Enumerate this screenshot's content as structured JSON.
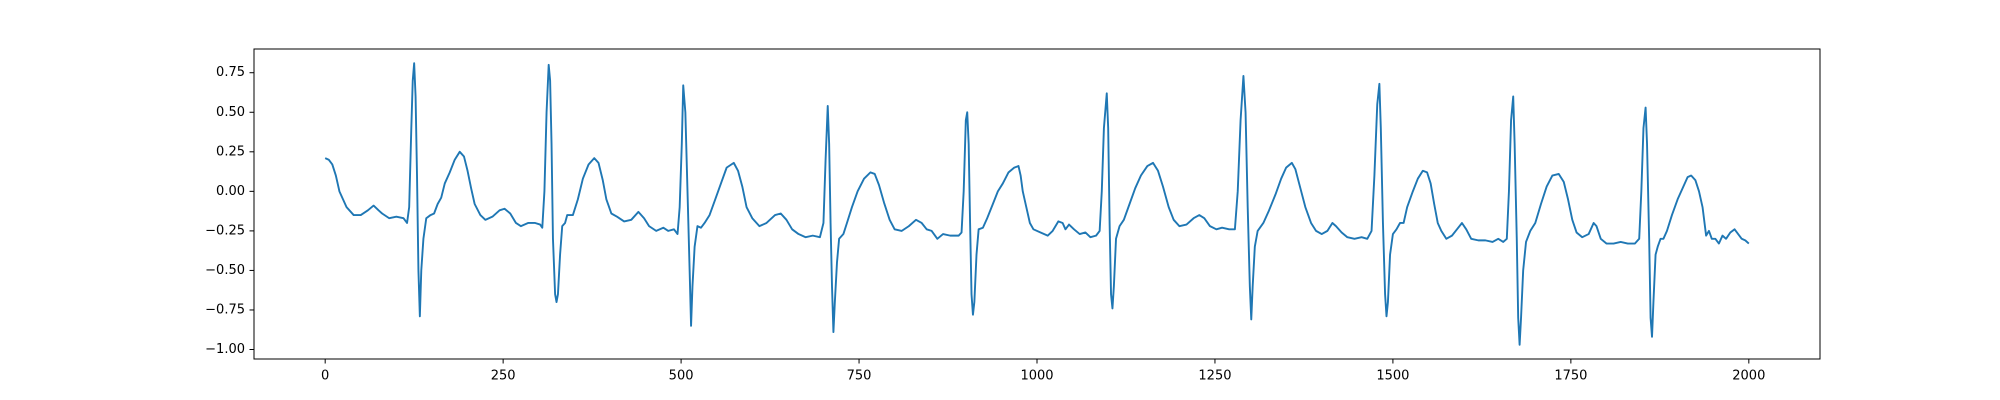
{
  "chart_data": {
    "type": "line",
    "x": [
      0,
      5,
      10,
      15,
      20,
      25,
      30,
      40,
      50,
      60,
      68,
      75,
      80,
      90,
      100,
      110,
      115,
      118,
      121,
      123,
      125,
      127,
      129,
      131,
      133,
      135,
      138,
      142,
      148,
      153,
      158,
      163,
      168,
      175,
      182,
      189,
      195,
      200,
      205,
      210,
      218,
      225,
      235,
      245,
      252,
      260,
      268,
      275,
      285,
      295,
      302,
      305,
      308,
      311,
      314,
      316,
      318,
      320,
      323,
      325,
      327,
      330,
      333,
      337,
      340,
      348,
      355,
      362,
      370,
      378,
      384,
      390,
      395,
      402,
      410,
      420,
      430,
      440,
      448,
      455,
      465,
      475,
      482,
      490,
      495,
      498,
      501,
      503,
      506,
      509,
      512,
      514,
      516,
      519,
      523,
      528,
      533,
      540,
      548,
      556,
      564,
      574,
      580,
      586,
      592,
      600,
      610,
      620,
      632,
      640,
      648,
      656,
      665,
      675,
      685,
      695,
      700,
      703,
      706,
      708,
      710,
      712,
      714,
      716,
      719,
      722,
      728,
      733,
      740,
      748,
      757,
      766,
      772,
      778,
      785,
      793,
      800,
      810,
      820,
      830,
      838,
      845,
      852,
      860,
      868,
      878,
      890,
      894,
      897,
      900,
      902,
      904,
      906,
      908,
      910,
      912,
      915,
      918,
      924,
      930,
      938,
      945,
      952,
      960,
      968,
      974,
      977,
      980,
      985,
      990,
      995,
      1005,
      1015,
      1022,
      1030,
      1036,
      1040,
      1045,
      1052,
      1060,
      1068,
      1075,
      1083,
      1088,
      1091,
      1094,
      1098,
      1100,
      1102,
      1104,
      1106,
      1108,
      1111,
      1116,
      1122,
      1130,
      1138,
      1146,
      1155,
      1163,
      1170,
      1177,
      1185,
      1192,
      1200,
      1210,
      1220,
      1228,
      1235,
      1243,
      1252,
      1260,
      1270,
      1278,
      1282,
      1286,
      1290,
      1293,
      1296,
      1299,
      1301,
      1303,
      1306,
      1310,
      1318,
      1326,
      1335,
      1343,
      1350,
      1358,
      1363,
      1370,
      1377,
      1385,
      1392,
      1400,
      1408,
      1415,
      1420,
      1428,
      1436,
      1446,
      1456,
      1464,
      1470,
      1474,
      1478,
      1481,
      1483,
      1486,
      1489,
      1491,
      1493,
      1496,
      1500,
      1505,
      1510,
      1515,
      1520,
      1528,
      1535,
      1542,
      1548,
      1553,
      1558,
      1563,
      1568,
      1575,
      1583,
      1590,
      1597,
      1603,
      1610,
      1620,
      1630,
      1640,
      1648,
      1655,
      1660,
      1663,
      1666,
      1669,
      1671,
      1674,
      1676,
      1678,
      1680,
      1683,
      1687,
      1693,
      1700,
      1708,
      1716,
      1724,
      1733,
      1740,
      1746,
      1752,
      1758,
      1766,
      1775,
      1782,
      1786,
      1792,
      1800,
      1810,
      1820,
      1830,
      1840,
      1846,
      1849,
      1852,
      1855,
      1857,
      1860,
      1862,
      1864,
      1866,
      1869,
      1872,
      1876,
      1880,
      1885,
      1892,
      1900,
      1908,
      1914,
      1919,
      1925,
      1930,
      1935,
      1940,
      1944,
      1948,
      1953,
      1958,
      1963,
      1968,
      1974,
      1980,
      1985,
      1990,
      1995,
      2000
    ],
    "series": [
      {
        "color": "#1f77b4",
        "values": [
          0.21,
          0.2,
          0.17,
          0.1,
          0.0,
          -0.05,
          -0.1,
          -0.15,
          -0.15,
          -0.12,
          -0.09,
          -0.12,
          -0.14,
          -0.17,
          -0.16,
          -0.17,
          -0.2,
          -0.1,
          0.4,
          0.7,
          0.81,
          0.6,
          0.1,
          -0.5,
          -0.79,
          -0.5,
          -0.3,
          -0.17,
          -0.15,
          -0.14,
          -0.08,
          -0.04,
          0.05,
          0.12,
          0.2,
          0.25,
          0.22,
          0.13,
          0.02,
          -0.08,
          -0.15,
          -0.18,
          -0.16,
          -0.12,
          -0.11,
          -0.14,
          -0.2,
          -0.22,
          -0.2,
          -0.2,
          -0.21,
          -0.23,
          0.0,
          0.5,
          0.8,
          0.7,
          0.3,
          -0.3,
          -0.65,
          -0.7,
          -0.65,
          -0.4,
          -0.22,
          -0.2,
          -0.15,
          -0.15,
          -0.05,
          0.08,
          0.17,
          0.21,
          0.18,
          0.07,
          -0.05,
          -0.14,
          -0.16,
          -0.19,
          -0.18,
          -0.13,
          -0.17,
          -0.22,
          -0.25,
          -0.23,
          -0.25,
          -0.24,
          -0.27,
          -0.1,
          0.3,
          0.67,
          0.5,
          0.0,
          -0.5,
          -0.85,
          -0.6,
          -0.35,
          -0.22,
          -0.23,
          -0.2,
          -0.15,
          -0.05,
          0.05,
          0.15,
          0.18,
          0.13,
          0.03,
          -0.1,
          -0.17,
          -0.22,
          -0.2,
          -0.15,
          -0.14,
          -0.18,
          -0.24,
          -0.27,
          -0.29,
          -0.28,
          -0.29,
          -0.2,
          0.2,
          0.54,
          0.3,
          -0.2,
          -0.6,
          -0.89,
          -0.7,
          -0.45,
          -0.3,
          -0.27,
          -0.2,
          -0.1,
          0.0,
          0.08,
          0.12,
          0.11,
          0.04,
          -0.07,
          -0.18,
          -0.24,
          -0.25,
          -0.22,
          -0.18,
          -0.2,
          -0.24,
          -0.25,
          -0.3,
          -0.27,
          -0.28,
          -0.28,
          -0.26,
          0.0,
          0.45,
          0.5,
          0.3,
          -0.2,
          -0.65,
          -0.78,
          -0.7,
          -0.4,
          -0.24,
          -0.23,
          -0.17,
          -0.08,
          0.0,
          0.05,
          0.12,
          0.15,
          0.16,
          0.1,
          0.0,
          -0.1,
          -0.2,
          -0.24,
          -0.26,
          -0.28,
          -0.25,
          -0.19,
          -0.2,
          -0.24,
          -0.21,
          -0.24,
          -0.27,
          -0.26,
          -0.29,
          -0.28,
          -0.25,
          0.0,
          0.4,
          0.62,
          0.4,
          -0.2,
          -0.65,
          -0.74,
          -0.6,
          -0.3,
          -0.22,
          -0.18,
          -0.08,
          0.02,
          0.1,
          0.16,
          0.18,
          0.13,
          0.03,
          -0.1,
          -0.18,
          -0.22,
          -0.21,
          -0.17,
          -0.15,
          -0.17,
          -0.22,
          -0.24,
          -0.23,
          -0.24,
          -0.24,
          0.0,
          0.45,
          0.73,
          0.5,
          -0.1,
          -0.6,
          -0.81,
          -0.6,
          -0.35,
          -0.25,
          -0.2,
          -0.12,
          -0.02,
          0.08,
          0.15,
          0.18,
          0.14,
          0.02,
          -0.1,
          -0.2,
          -0.25,
          -0.27,
          -0.25,
          -0.2,
          -0.22,
          -0.26,
          -0.29,
          -0.3,
          -0.29,
          -0.3,
          -0.25,
          0.1,
          0.55,
          0.68,
          0.4,
          -0.2,
          -0.65,
          -0.79,
          -0.7,
          -0.4,
          -0.27,
          -0.24,
          -0.2,
          -0.2,
          -0.1,
          0.0,
          0.08,
          0.13,
          0.12,
          0.05,
          -0.08,
          -0.2,
          -0.25,
          -0.3,
          -0.28,
          -0.24,
          -0.2,
          -0.24,
          -0.3,
          -0.31,
          -0.31,
          -0.32,
          -0.3,
          -0.32,
          -0.3,
          0.0,
          0.45,
          0.6,
          0.3,
          -0.3,
          -0.8,
          -0.97,
          -0.8,
          -0.5,
          -0.32,
          -0.25,
          -0.2,
          -0.08,
          0.03,
          0.1,
          0.11,
          0.06,
          -0.05,
          -0.18,
          -0.26,
          -0.29,
          -0.27,
          -0.2,
          -0.22,
          -0.3,
          -0.33,
          -0.33,
          -0.32,
          -0.33,
          -0.33,
          -0.3,
          0.0,
          0.4,
          0.53,
          0.3,
          -0.3,
          -0.8,
          -0.92,
          -0.7,
          -0.4,
          -0.35,
          -0.3,
          -0.3,
          -0.25,
          -0.15,
          -0.05,
          0.03,
          0.09,
          0.1,
          0.07,
          0.0,
          -0.1,
          -0.28,
          -0.25,
          -0.3,
          -0.3,
          -0.33,
          -0.28,
          -0.3,
          -0.26,
          -0.24,
          -0.27,
          -0.3,
          -0.31,
          -0.33
        ]
      }
    ],
    "xlim": [
      -100,
      2100
    ],
    "xticks": [
      0,
      250,
      500,
      750,
      1000,
      1250,
      1500,
      1750,
      2000
    ],
    "ylim": [
      -1.06,
      0.9
    ],
    "yticks": [
      {
        "value": -1.0,
        "label": "−1.00"
      },
      {
        "value": -0.75,
        "label": "−0.75"
      },
      {
        "value": -0.5,
        "label": "−0.50"
      },
      {
        "value": -0.25,
        "label": "−0.25"
      },
      {
        "value": 0,
        "label": "0.00"
      },
      0.25,
      {
        "value": 0.5,
        "label": "0.50"
      },
      0.75
    ],
    "grid": false
  }
}
